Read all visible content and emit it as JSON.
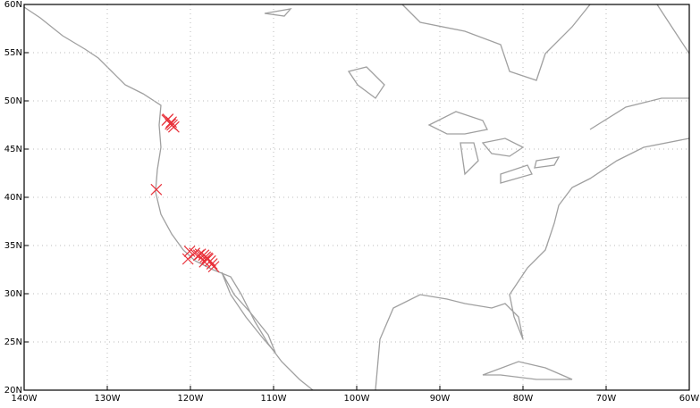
{
  "chart_data": {
    "type": "scatter",
    "color": "#e8313a",
    "grid": true,
    "xlim": [
      -140,
      -60
    ],
    "ylim": [
      20,
      60
    ],
    "xticks": [
      {
        "value": -140,
        "label": "140W"
      },
      {
        "value": -130,
        "label": "130W"
      },
      {
        "value": -120,
        "label": "120W"
      },
      {
        "value": -110,
        "label": "110W"
      },
      {
        "value": -100,
        "label": "100W"
      },
      {
        "value": -90,
        "label": "90W"
      },
      {
        "value": -80,
        "label": "80W"
      },
      {
        "value": -70,
        "label": "70W"
      },
      {
        "value": -60,
        "label": "60W"
      }
    ],
    "yticks": [
      {
        "value": 20,
        "label": "20N"
      },
      {
        "value": 25,
        "label": "25N"
      },
      {
        "value": 30,
        "label": "30N"
      },
      {
        "value": 35,
        "label": "35N"
      },
      {
        "value": 40,
        "label": "40N"
      },
      {
        "value": 45,
        "label": "45N"
      },
      {
        "value": 50,
        "label": "50N"
      },
      {
        "value": 55,
        "label": "55N"
      },
      {
        "value": 60,
        "label": "60N"
      }
    ],
    "x": [
      -122.7,
      -122.3,
      -122.2,
      -122.4,
      -122.0,
      -122.8,
      -124.1,
      -120.1,
      -119.5,
      -118.8,
      -118.4,
      -118.2,
      -118.0,
      -117.9,
      -117.6,
      -117.4,
      -117.2,
      -120.3,
      -118.3,
      -119.0
    ],
    "y": [
      48.1,
      47.8,
      47.5,
      47.6,
      47.3,
      48.0,
      40.8,
      34.4,
      34.2,
      34.1,
      34.0,
      33.8,
      33.7,
      33.6,
      33.4,
      33.1,
      32.8,
      33.6,
      33.3,
      34.0
    ]
  }
}
